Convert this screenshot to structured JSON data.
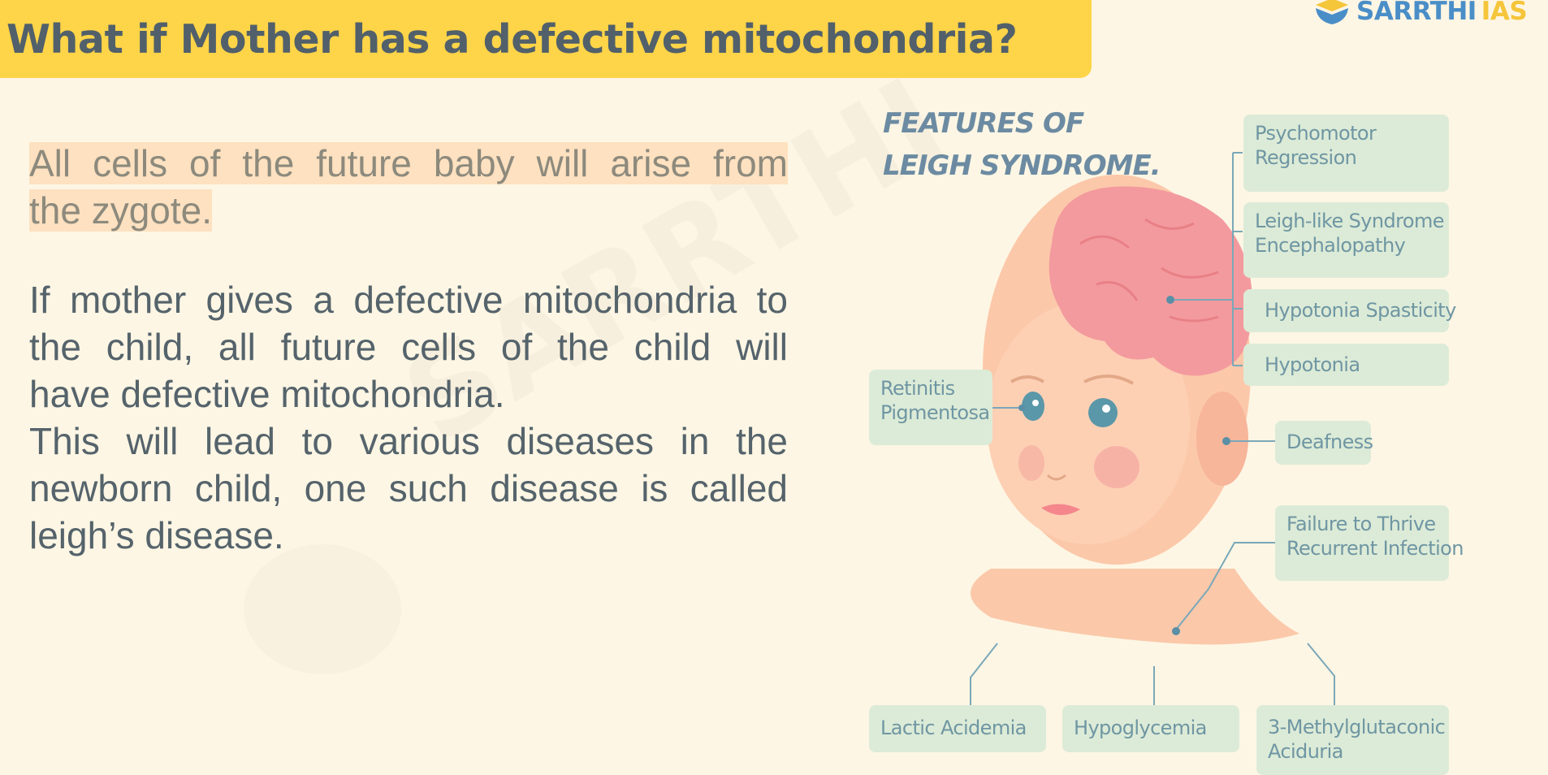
{
  "slide": {
    "title": "What if Mother has a defective mitochondria?",
    "brand": {
      "name": "SARRTHI",
      "suffix": "IAS"
    },
    "watermark": "SARRTHI"
  },
  "content": {
    "para1": [
      "All cells of the future baby will arise from",
      "the zygote."
    ],
    "para2": [
      "If mother gives a defective mitochondria to",
      "the child, all future cells of the child will",
      "have defective mitochondria.",
      "This will lead to various diseases in the",
      "newborn child, one such disease is called",
      "leigh’s disease."
    ]
  },
  "infographic": {
    "title": [
      "FEATURES OF",
      "LEIGH SYNDROME."
    ],
    "labels": {
      "psychomotor": [
        "Psychomotor",
        "Regression"
      ],
      "encephalopathy": [
        "Leigh-like Syndrome",
        "Encephalopathy"
      ],
      "spasticity": [
        "Hypotonia Spasticity"
      ],
      "hypotonia": [
        "Hypotonia"
      ],
      "retinitis": [
        "Retinitis",
        "Pigmentosa"
      ],
      "deafness": [
        "Deafness"
      ],
      "failure": [
        "Failure to Thrive",
        "Recurrent Infection"
      ],
      "lactic": [
        "Lactic Acidemia"
      ],
      "hypoglycemia": [
        "Hypoglycemia"
      ],
      "methyl": [
        "3-Methylglutaconic",
        "Aciduria"
      ]
    }
  },
  "colors": {
    "background": "#fdf6e4",
    "title_bar": "#fed448",
    "title_text": "#51606a",
    "highlight": "#fde1c0",
    "body_text": "#55636b",
    "label_bg": "#dcebd7",
    "label_text": "#6f96a3",
    "brand_blue": "#4a8ec8",
    "brand_yellow": "#f5c53a"
  }
}
